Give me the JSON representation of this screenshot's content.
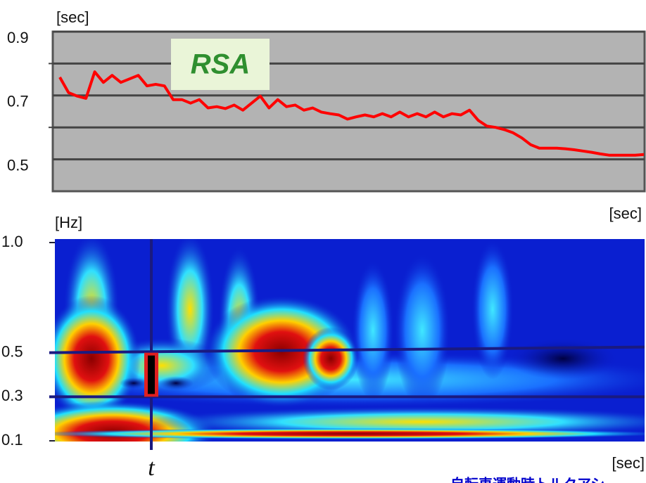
{
  "chart_data": [
    {
      "type": "line",
      "y_unit": "[sec]",
      "x_unit": "[sec]",
      "annotation": "RSA",
      "series": [
        {
          "name": "RSA",
          "color": "#ff0000",
          "values": [
            0.757,
            0.709,
            0.698,
            0.691,
            0.774,
            0.741,
            0.763,
            0.741,
            0.752,
            0.763,
            0.73,
            0.735,
            0.73,
            0.687,
            0.687,
            0.676,
            0.687,
            0.661,
            0.665,
            0.659,
            0.67,
            0.654,
            0.676,
            0.698,
            0.661,
            0.687,
            0.665,
            0.67,
            0.654,
            0.661,
            0.648,
            0.643,
            0.639,
            0.626,
            0.633,
            0.639,
            0.633,
            0.643,
            0.633,
            0.648,
            0.633,
            0.643,
            0.633,
            0.648,
            0.633,
            0.643,
            0.639,
            0.654,
            0.622,
            0.604,
            0.6,
            0.593,
            0.583,
            0.567,
            0.546,
            0.535,
            0.535,
            0.535,
            0.533,
            0.53,
            0.526,
            0.522,
            0.517,
            0.513,
            0.513,
            0.513,
            0.513,
            0.515
          ]
        }
      ],
      "ylim": [
        0.4,
        0.9
      ],
      "yticks": [
        0.5,
        0.7,
        0.9
      ],
      "minor_yticks": [
        0.6,
        0.8
      ],
      "grid": true
    },
    {
      "type": "spectrogram",
      "y_unit": "[Hz]",
      "x_unit": "[sec]",
      "ylim": [
        0.1,
        1.0
      ],
      "yticks": [
        0.1,
        0.3,
        {
          "value": 0.5,
          "label": "0.5"
        },
        {
          "value": 1.0,
          "label": "1.0"
        }
      ],
      "band": [
        0.3,
        0.5
      ],
      "marker_label": "t",
      "footer": "自転車運動時トルクアシ"
    }
  ]
}
